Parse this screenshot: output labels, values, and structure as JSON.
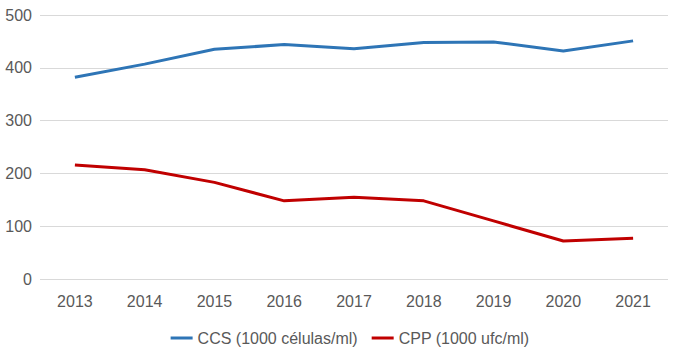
{
  "chart_data": {
    "type": "line",
    "categories": [
      "2013",
      "2014",
      "2015",
      "2016",
      "2017",
      "2018",
      "2019",
      "2020",
      "2021"
    ],
    "series": [
      {
        "name": "CCS (1000 células/ml)",
        "color": "#2E75B6",
        "values": [
          382,
          407,
          435,
          444,
          436,
          448,
          449,
          432,
          451
        ]
      },
      {
        "name": "CPP (1000 ufc/ml)",
        "color": "#C00000",
        "values": [
          216,
          207,
          183,
          148,
          155,
          148,
          110,
          72,
          77
        ]
      }
    ],
    "ylim": [
      0,
      500
    ],
    "yticks": [
      0,
      100,
      200,
      300,
      400,
      500
    ],
    "grid": true,
    "legend": "bottom"
  }
}
